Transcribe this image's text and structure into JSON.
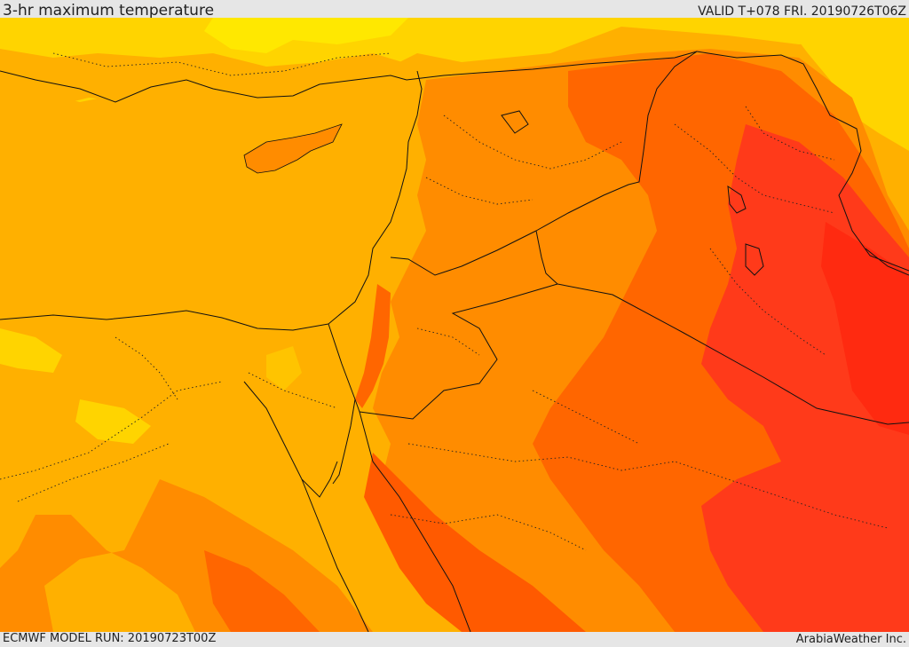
{
  "header": {
    "title": "3-hr maximum temperature",
    "valid_time": "VALID T+078 FRI. 20190726T06Z"
  },
  "footer": {
    "model_run": "ECMWF MODEL RUN: 20190723T00Z",
    "credit": "ArabiaWeather Inc."
  },
  "map": {
    "color_levels": [
      "#ffe000",
      "#ffb000",
      "#ff8c00",
      "#ff6600",
      "#ff3a1a",
      "#ff2a10"
    ],
    "border_color": "#111111",
    "internal_border_style": "dotted"
  }
}
